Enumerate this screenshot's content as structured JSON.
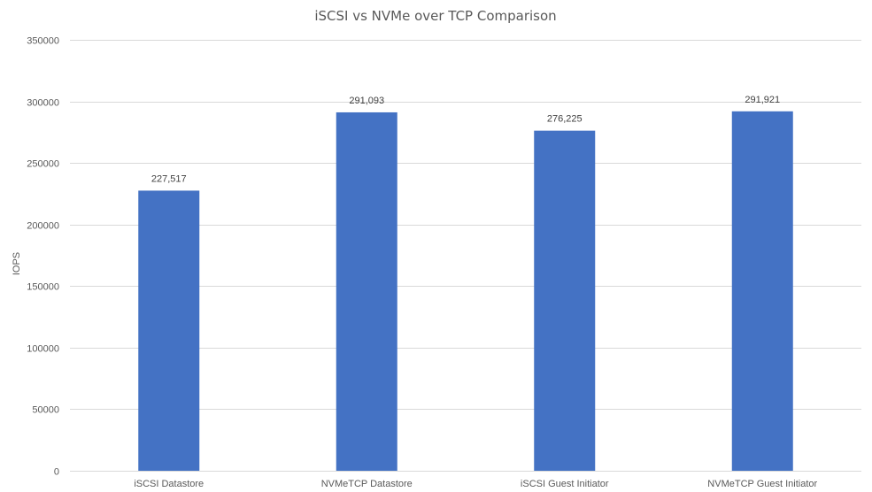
{
  "chart_data": {
    "type": "bar",
    "title": "iSCSI vs NVMe over TCP Comparison",
    "xlabel": "",
    "ylabel": "IOPS",
    "categories": [
      "iSCSI Datastore",
      "NVMeTCP Datastore",
      "iSCSI Guest Initiator",
      "NVMeTCP Guest Initiator"
    ],
    "values": [
      227517,
      291093,
      276225,
      291921
    ],
    "data_labels": [
      "227,517",
      "291,093",
      "276,225",
      "291,921"
    ],
    "ylim": [
      0,
      350000
    ],
    "y_ticks": [
      0,
      50000,
      100000,
      150000,
      200000,
      250000,
      300000,
      350000
    ],
    "y_tick_labels": [
      "0",
      "50000",
      "100000",
      "150000",
      "200000",
      "250000",
      "300000",
      "350000"
    ],
    "grid": true,
    "legend": "none",
    "bar_color": "#4472c4"
  }
}
